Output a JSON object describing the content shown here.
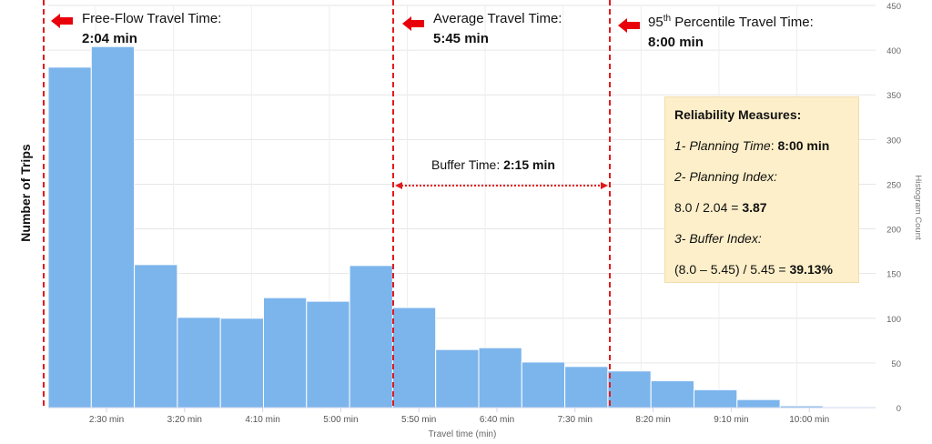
{
  "chart_data": {
    "type": "bar",
    "subtype": "histogram",
    "xlabel": "Travel time (min)",
    "ylabel_left": "Number of Trips",
    "ylabel_right": "Histogram Count",
    "ylim": [
      0,
      450
    ],
    "y_ticks": [
      0,
      50,
      100,
      150,
      200,
      250,
      300,
      350,
      400,
      450
    ],
    "x_ticks": [
      "2:30 min",
      "3:20 min",
      "4:10 min",
      "5:00 min",
      "5:50 min",
      "6:40 min",
      "7:30 min",
      "8:20 min",
      "9:10 min",
      "10:00 min"
    ],
    "grid": true,
    "bar_color": "#7cb5ec",
    "values": [
      381,
      404,
      160,
      101,
      100,
      123,
      119,
      159,
      112,
      65,
      67,
      51,
      46,
      41,
      30,
      20,
      9,
      2,
      1
    ],
    "reference_lines": [
      {
        "name": "Free-Flow Travel Time",
        "value": "2:04 min",
        "color": "#e31a1c"
      },
      {
        "name": "Average Travel Time",
        "value": "5:45 min",
        "color": "#e31a1c"
      },
      {
        "name": "95th Percentile Travel Time",
        "value": "8:00 min",
        "color": "#e31a1c"
      }
    ]
  },
  "annotations": {
    "free_flow_label": "Free-Flow Travel Time:",
    "free_flow_value": "2:04 min",
    "average_label": "Average Travel Time:",
    "average_value": "5:45 min",
    "p95_prefix": "95",
    "p95_sup": "th",
    "p95_rest": " Percentile Travel Time:",
    "p95_value": "8:00 min",
    "buffer_label": "Buffer Time: ",
    "buffer_value": "2:15 min"
  },
  "reliability": {
    "title": "Reliability Measures:",
    "planning_time_label": "1- Planning Time",
    "planning_time_sep": ": ",
    "planning_time_value": "8:00 min",
    "planning_index_label": "2- Planning Index:",
    "planning_index_expr": "8.0 / 2.04 = ",
    "planning_index_value": "3.87",
    "buffer_index_label": "3- Buffer Index:",
    "buffer_index_expr": "(8.0 – 5.45) / 5.45 = ",
    "buffer_index_value": "39.13%"
  },
  "colors": {
    "bars": "#7cb5ec",
    "reference": "#e31a1c",
    "box": "#fdefc9",
    "arrow": "#e8000b"
  }
}
